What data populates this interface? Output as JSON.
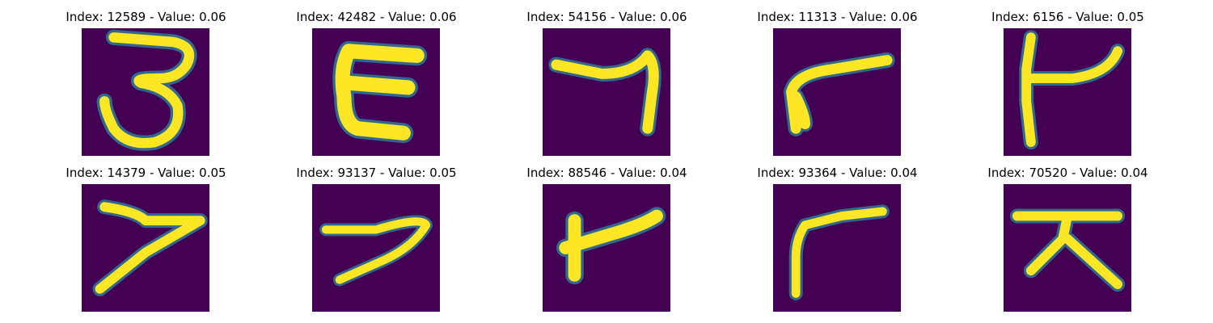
{
  "figure": {
    "colors": {
      "background": "#440154",
      "stroke_outer": "#31688e",
      "stroke_mid": "#35b779",
      "stroke_core": "#fde725"
    },
    "panels": [
      {
        "title": "Index: 12589 - Value: 0.06",
        "glyph": "3"
      },
      {
        "title": "Index: 42482 - Value: 0.06",
        "glyph": "E-like"
      },
      {
        "title": "Index: 54156 - Value: 0.06",
        "glyph": "7-like"
      },
      {
        "title": "Index: 11313 - Value: 0.06",
        "glyph": "r-like"
      },
      {
        "title": "Index: 6156 - Value: 0.05",
        "glyph": "t-like"
      },
      {
        "title": "Index: 14379 - Value: 0.05",
        "glyph": "7"
      },
      {
        "title": "Index: 93137 - Value: 0.05",
        "glyph": "7"
      },
      {
        "title": "Index: 88546 - Value: 0.04",
        "glyph": "t-like"
      },
      {
        "title": "Index: 93364 - Value: 0.04",
        "glyph": "r-like"
      },
      {
        "title": "Index: 70520 - Value: 0.04",
        "glyph": "大-like"
      }
    ]
  }
}
